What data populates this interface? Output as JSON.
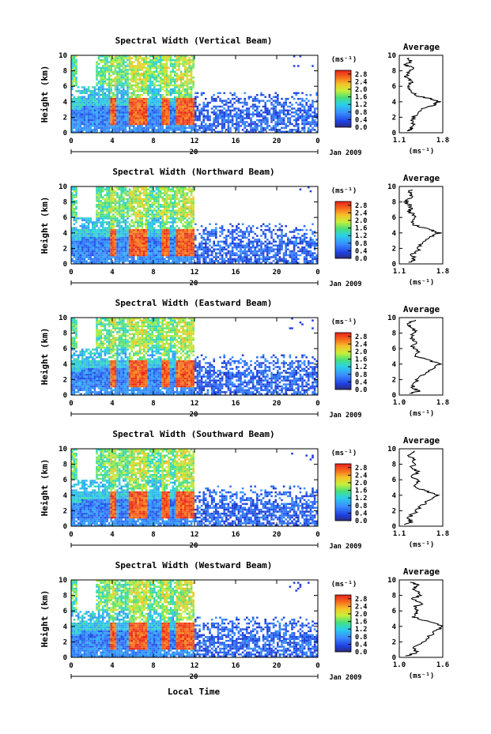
{
  "figure": {
    "x_axis_label": "Local Time",
    "avg_title": "Average",
    "cbar_unit": "(ms⁻¹)",
    "avg_xlabel": "(ms⁻¹)",
    "date_label": "Jan 2009",
    "day_label": "20",
    "ylabel": "Height (km)"
  },
  "chart_data": [
    {
      "type": "heatmap",
      "title": "Spectral Width (Vertical Beam)",
      "x_ticks": [
        "0",
        "4",
        "8",
        "12",
        "16",
        "20",
        "0"
      ],
      "y_ticks": [
        "0",
        "2",
        "4",
        "6",
        "8",
        "10"
      ],
      "xlim": [
        0,
        24
      ],
      "ylim": [
        0,
        10
      ],
      "colorbar": {
        "ticks": [
          "0.0",
          "0.4",
          "0.8",
          "1.2",
          "1.6",
          "2.0",
          "2.4",
          "2.8"
        ],
        "range": [
          0,
          3.0
        ]
      },
      "average": {
        "xlim": [
          1.1,
          1.8
        ],
        "x_ticks": [
          "1.1",
          "1.8"
        ],
        "profile": [
          [
            1.2,
            0.2
          ],
          [
            1.3,
            0.5
          ],
          [
            1.35,
            1.0
          ],
          [
            1.3,
            1.6
          ],
          [
            1.35,
            2.2
          ],
          [
            1.45,
            3.0
          ],
          [
            1.65,
            3.6
          ],
          [
            1.75,
            4.0
          ],
          [
            1.6,
            4.4
          ],
          [
            1.35,
            4.8
          ],
          [
            1.3,
            5.5
          ],
          [
            1.25,
            6.0
          ],
          [
            1.3,
            6.6
          ],
          [
            1.2,
            7.2
          ],
          [
            1.25,
            7.8
          ],
          [
            1.35,
            8.3
          ],
          [
            1.2,
            8.8
          ],
          [
            1.3,
            9.3
          ],
          [
            1.25,
            9.7
          ]
        ]
      }
    },
    {
      "type": "heatmap",
      "title": "Spectral Width (Northward Beam)",
      "x_ticks": [
        "0",
        "4",
        "8",
        "12",
        "16",
        "20",
        "0"
      ],
      "y_ticks": [
        "0",
        "2",
        "4",
        "6",
        "8",
        "10"
      ],
      "xlim": [
        0,
        24
      ],
      "ylim": [
        0,
        10
      ],
      "colorbar": {
        "ticks": [
          "0.0",
          "0.4",
          "0.8",
          "1.2",
          "1.6",
          "2.0",
          "2.4",
          "2.8"
        ],
        "range": [
          0,
          3.0
        ]
      },
      "average": {
        "xlim": [
          1.1,
          1.8
        ],
        "x_ticks": [
          "1.1",
          "1.8"
        ],
        "profile": [
          [
            1.25,
            0.2
          ],
          [
            1.35,
            0.6
          ],
          [
            1.3,
            1.2
          ],
          [
            1.4,
            1.8
          ],
          [
            1.45,
            2.6
          ],
          [
            1.6,
            3.4
          ],
          [
            1.75,
            4.0
          ],
          [
            1.55,
            4.5
          ],
          [
            1.35,
            5.0
          ],
          [
            1.3,
            5.6
          ],
          [
            1.35,
            6.2
          ],
          [
            1.25,
            6.8
          ],
          [
            1.3,
            7.4
          ],
          [
            1.2,
            8.0
          ],
          [
            1.3,
            8.6
          ],
          [
            1.25,
            9.1
          ],
          [
            1.3,
            9.6
          ]
        ]
      }
    },
    {
      "type": "heatmap",
      "title": "Spectral Width (Eastward Beam)",
      "x_ticks": [
        "0",
        "4",
        "8",
        "12",
        "16",
        "20",
        "0"
      ],
      "y_ticks": [
        "0",
        "2",
        "4",
        "6",
        "8",
        "10"
      ],
      "xlim": [
        0,
        24
      ],
      "ylim": [
        0,
        10
      ],
      "colorbar": {
        "ticks": [
          "0.0",
          "0.4",
          "0.8",
          "1.2",
          "1.6",
          "2.0",
          "2.4",
          "2.8"
        ],
        "range": [
          0,
          3.0
        ]
      },
      "average": {
        "xlim": [
          1.0,
          1.8
        ],
        "x_ticks": [
          "1.0",
          "1.8"
        ],
        "profile": [
          [
            1.2,
            0.2
          ],
          [
            1.35,
            0.5
          ],
          [
            1.25,
            1.0
          ],
          [
            1.3,
            1.7
          ],
          [
            1.4,
            2.5
          ],
          [
            1.6,
            3.3
          ],
          [
            1.75,
            4.0
          ],
          [
            1.55,
            4.5
          ],
          [
            1.3,
            5.0
          ],
          [
            1.35,
            5.7
          ],
          [
            1.25,
            6.3
          ],
          [
            1.3,
            6.9
          ],
          [
            1.2,
            7.5
          ],
          [
            1.3,
            8.1
          ],
          [
            1.25,
            8.7
          ],
          [
            1.15,
            9.2
          ],
          [
            1.3,
            9.7
          ]
        ]
      }
    },
    {
      "type": "heatmap",
      "title": "Spectral Width (Southward Beam)",
      "x_ticks": [
        "0",
        "4",
        "8",
        "12",
        "16",
        "20",
        "0"
      ],
      "y_ticks": [
        "0",
        "2",
        "4",
        "6",
        "8",
        "10"
      ],
      "xlim": [
        0,
        24
      ],
      "ylim": [
        0,
        10
      ],
      "colorbar": {
        "ticks": [
          "0.0",
          "0.4",
          "0.8",
          "1.2",
          "1.6",
          "2.0",
          "2.4",
          "2.8"
        ],
        "range": [
          0,
          3.0
        ]
      },
      "average": {
        "xlim": [
          1.1,
          1.8
        ],
        "x_ticks": [
          "1.1",
          "1.8"
        ],
        "profile": [
          [
            1.2,
            0.2
          ],
          [
            1.3,
            0.6
          ],
          [
            1.25,
            1.1
          ],
          [
            1.35,
            1.8
          ],
          [
            1.45,
            2.6
          ],
          [
            1.6,
            3.4
          ],
          [
            1.75,
            4.0
          ],
          [
            1.5,
            4.6
          ],
          [
            1.35,
            5.2
          ],
          [
            1.4,
            5.8
          ],
          [
            1.3,
            6.4
          ],
          [
            1.4,
            7.0
          ],
          [
            1.3,
            7.6
          ],
          [
            1.35,
            8.2
          ],
          [
            1.3,
            8.8
          ],
          [
            1.25,
            9.3
          ],
          [
            1.35,
            9.7
          ]
        ]
      }
    },
    {
      "type": "heatmap",
      "title": "Spectral Width (Westward Beam)",
      "x_ticks": [
        "0",
        "4",
        "8",
        "12",
        "16",
        "20",
        "0"
      ],
      "y_ticks": [
        "0",
        "2",
        "4",
        "6",
        "8",
        "10"
      ],
      "xlim": [
        0,
        24
      ],
      "ylim": [
        0,
        10
      ],
      "colorbar": {
        "ticks": [
          "0.0",
          "0.4",
          "0.8",
          "1.2",
          "1.6",
          "2.0",
          "2.4",
          "2.8"
        ],
        "range": [
          0,
          3.0
        ]
      },
      "average": {
        "xlim": [
          1.0,
          1.6
        ],
        "x_ticks": [
          "1.0",
          "1.6"
        ],
        "profile": [
          [
            1.1,
            0.2
          ],
          [
            1.25,
            0.6
          ],
          [
            1.2,
            1.1
          ],
          [
            1.3,
            1.8
          ],
          [
            1.4,
            2.6
          ],
          [
            1.5,
            3.4
          ],
          [
            1.6,
            4.0
          ],
          [
            1.4,
            4.6
          ],
          [
            1.2,
            5.2
          ],
          [
            1.25,
            5.8
          ],
          [
            1.2,
            6.4
          ],
          [
            1.3,
            7.0
          ],
          [
            1.2,
            7.6
          ],
          [
            1.3,
            8.2
          ],
          [
            1.2,
            8.8
          ],
          [
            1.25,
            9.3
          ],
          [
            1.15,
            9.7
          ]
        ]
      }
    }
  ]
}
